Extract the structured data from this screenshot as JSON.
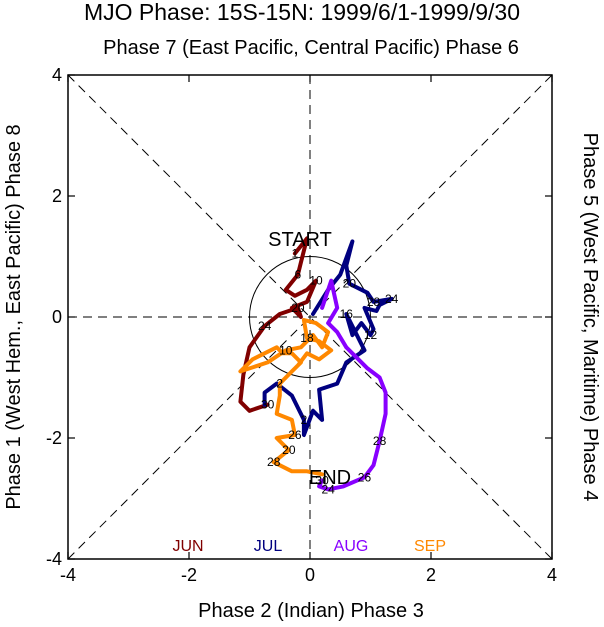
{
  "chart_data": {
    "type": "line",
    "title": "MJO Phase: 15S-15N: 1999/6/1-1999/9/30",
    "top_label": "Phase 7 (East Pacific, Central Pacific) Phase 6",
    "xlabel": "Phase 2 (Indian) Phase 3",
    "left_label": "Phase 1 (West Hem., East Pacific) Phase 8",
    "right_label": "Phase 5 (West Pacific, Maritime) Phase 4",
    "xlim": [
      -4,
      4
    ],
    "ylim": [
      -4,
      4
    ],
    "x_ticks": [
      "-4",
      "-2",
      "0",
      "2",
      "4"
    ],
    "y_ticks": [
      "-4",
      "-2",
      "0",
      "2",
      "4"
    ],
    "start_label": "START",
    "end_label": "END",
    "unit_circle_radius": 1,
    "series": [
      {
        "name": "JUN",
        "color": "#800000",
        "points": [
          {
            "x": -0.25,
            "y": 1.05,
            "label": "1"
          },
          {
            "x": -0.05,
            "y": 1.3
          },
          {
            "x": -0.15,
            "y": 0.9
          },
          {
            "x": -0.2,
            "y": 0.7,
            "label": "6"
          },
          {
            "x": -0.4,
            "y": 0.45
          },
          {
            "x": -0.25,
            "y": 0.35
          },
          {
            "x": -0.05,
            "y": 0.45
          },
          {
            "x": 0.1,
            "y": 0.6,
            "label": "10"
          },
          {
            "x": -0.05,
            "y": 0.25
          },
          {
            "x": -0.3,
            "y": 0.15
          },
          {
            "x": -0.15,
            "y": 0.0
          },
          {
            "x": -0.2,
            "y": 0.15,
            "label": "20"
          },
          {
            "x": -0.5,
            "y": 0.05
          },
          {
            "x": -0.75,
            "y": -0.15,
            "label": "24"
          },
          {
            "x": -1.0,
            "y": -0.5
          },
          {
            "x": -1.1,
            "y": -0.95
          },
          {
            "x": -1.15,
            "y": -1.4
          },
          {
            "x": -1.0,
            "y": -1.55
          },
          {
            "x": -0.7,
            "y": -1.45,
            "label": "30"
          }
        ]
      },
      {
        "name": "JUL",
        "color": "#000080",
        "points": [
          {
            "x": 0.05,
            "y": 0.05
          },
          {
            "x": 0.3,
            "y": 0.45
          },
          {
            "x": 0.5,
            "y": 0.7
          },
          {
            "x": 0.7,
            "y": 1.25
          },
          {
            "x": 0.6,
            "y": 0.85
          },
          {
            "x": 0.65,
            "y": 0.55,
            "label": "20"
          },
          {
            "x": 0.95,
            "y": 0.4
          },
          {
            "x": 1.05,
            "y": 0.25,
            "label": "28"
          },
          {
            "x": 1.35,
            "y": 0.3,
            "label": "24"
          },
          {
            "x": 1.15,
            "y": 0.2
          },
          {
            "x": 1.1,
            "y": 0.1
          },
          {
            "x": 0.9,
            "y": 0.15
          },
          {
            "x": 1.05,
            "y": -0.2
          },
          {
            "x": 1.0,
            "y": -0.3,
            "label": "12"
          },
          {
            "x": 0.85,
            "y": -0.1
          },
          {
            "x": 0.7,
            "y": -0.3
          },
          {
            "x": 0.6,
            "y": 0.05,
            "label": "16"
          },
          {
            "x": 0.9,
            "y": -0.55
          },
          {
            "x": 0.6,
            "y": -0.75
          },
          {
            "x": 0.45,
            "y": -1.1
          },
          {
            "x": 0.15,
            "y": -1.2
          },
          {
            "x": 0.2,
            "y": -1.7
          },
          {
            "x": 0.05,
            "y": -1.55
          },
          {
            "x": -0.1,
            "y": -1.95
          },
          {
            "x": -0.1,
            "y": -1.7,
            "label": "2"
          },
          {
            "x": -0.3,
            "y": -1.3
          },
          {
            "x": -0.55,
            "y": -1.1
          },
          {
            "x": -0.75,
            "y": -1.25
          },
          {
            "x": -0.75,
            "y": -1.45
          }
        ]
      },
      {
        "name": "AUG",
        "color": "#8800ff",
        "points": [
          {
            "x": 0.2,
            "y": 0.15
          },
          {
            "x": 0.35,
            "y": 0.6
          },
          {
            "x": 0.45,
            "y": 0.15
          },
          {
            "x": 0.3,
            "y": -0.1
          },
          {
            "x": 0.45,
            "y": -0.25
          },
          {
            "x": 0.6,
            "y": -0.5
          },
          {
            "x": 0.95,
            "y": -0.85
          },
          {
            "x": 1.15,
            "y": -1.0
          },
          {
            "x": 1.25,
            "y": -1.25
          },
          {
            "x": 1.25,
            "y": -1.6
          },
          {
            "x": 1.15,
            "y": -2.05,
            "label": "28"
          },
          {
            "x": 1.05,
            "y": -2.45
          },
          {
            "x": 0.9,
            "y": -2.65,
            "label": "26"
          },
          {
            "x": 0.55,
            "y": -2.8
          },
          {
            "x": 0.3,
            "y": -2.85,
            "label": "24"
          },
          {
            "x": 0.15,
            "y": -2.8
          },
          {
            "x": 0.2,
            "y": -2.7,
            "label": "30"
          }
        ]
      },
      {
        "name": "SEP",
        "color": "#ff8800",
        "points": [
          {
            "x": 0.2,
            "y": -2.6
          },
          {
            "x": -0.05,
            "y": -2.55
          },
          {
            "x": -0.3,
            "y": -2.55
          },
          {
            "x": -0.6,
            "y": -2.4,
            "label": "28"
          },
          {
            "x": -0.35,
            "y": -2.2,
            "label": "20"
          },
          {
            "x": -0.55,
            "y": -2.0
          },
          {
            "x": -0.25,
            "y": -1.95,
            "label": "26"
          },
          {
            "x": -0.3,
            "y": -1.7
          },
          {
            "x": -0.55,
            "y": -1.6
          },
          {
            "x": -0.5,
            "y": -1.3
          },
          {
            "x": -0.5,
            "y": -1.1,
            "label": "2"
          },
          {
            "x": -0.3,
            "y": -0.9
          },
          {
            "x": -0.15,
            "y": -0.75
          },
          {
            "x": -0.3,
            "y": -0.6
          },
          {
            "x": -0.45,
            "y": -0.6
          },
          {
            "x": -0.55,
            "y": -0.5
          },
          {
            "x": -0.75,
            "y": -0.6
          },
          {
            "x": -0.95,
            "y": -0.7
          },
          {
            "x": -1.15,
            "y": -0.9
          },
          {
            "x": -0.7,
            "y": -0.75
          },
          {
            "x": -0.4,
            "y": -0.55,
            "label": "10"
          },
          {
            "x": -0.15,
            "y": -0.5
          },
          {
            "x": 0.05,
            "y": -0.3
          },
          {
            "x": 0.2,
            "y": -0.5
          },
          {
            "x": 0.3,
            "y": -0.25
          },
          {
            "x": 0.1,
            "y": -0.1
          },
          {
            "x": -0.1,
            "y": -0.05
          },
          {
            "x": -0.05,
            "y": -0.35,
            "label": "18"
          },
          {
            "x": 0.15,
            "y": -0.4
          },
          {
            "x": 0.35,
            "y": -0.55
          },
          {
            "x": 0.15,
            "y": -0.7
          },
          {
            "x": -0.05,
            "y": -0.6
          },
          {
            "x": -0.2,
            "y": -0.8
          }
        ]
      }
    ]
  }
}
